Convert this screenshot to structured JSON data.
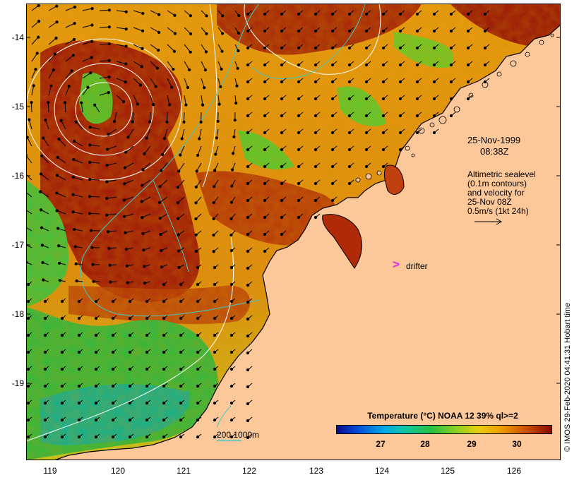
{
  "map": {
    "lat_labels": [
      "-14",
      "-15",
      "-16",
      "-17",
      "-18",
      "-19"
    ],
    "lon_labels": [
      "119",
      "120",
      "121",
      "122",
      "123",
      "124",
      "125",
      "126"
    ],
    "date_line1": "25-Nov-1999",
    "date_line2": "08:38Z",
    "altimetry_lines": [
      "Altimetric sealevel",
      "(0.1m contours)",
      "and velocity for",
      "25-Nov 08Z",
      "0.5m/s (1kt 24h)"
    ],
    "drifter_marker": ">",
    "drifter_label": "drifter",
    "depth_contours_label": "200  1000m",
    "credit": "© IMOS 29-Feb-2020 04:41:31 Hobart time",
    "colors": {
      "land": "#fcc89a",
      "coast": "#000000",
      "sealevel_contour": "#ffffff",
      "bathymetry_contour": "#40c8c8",
      "drifter": "#e020e0",
      "vector": "#000000"
    }
  },
  "legend": {
    "title": "Temperature (°C) NOAA 12 39% ql>=2",
    "ticks": [
      "27",
      "28",
      "29",
      "30"
    ],
    "colormap": [
      "#0a0a8c",
      "#0050d8",
      "#00a8e8",
      "#10c8a0",
      "#28c040",
      "#90d020",
      "#e8d010",
      "#f0a000",
      "#d05000",
      "#8c0a00"
    ]
  }
}
